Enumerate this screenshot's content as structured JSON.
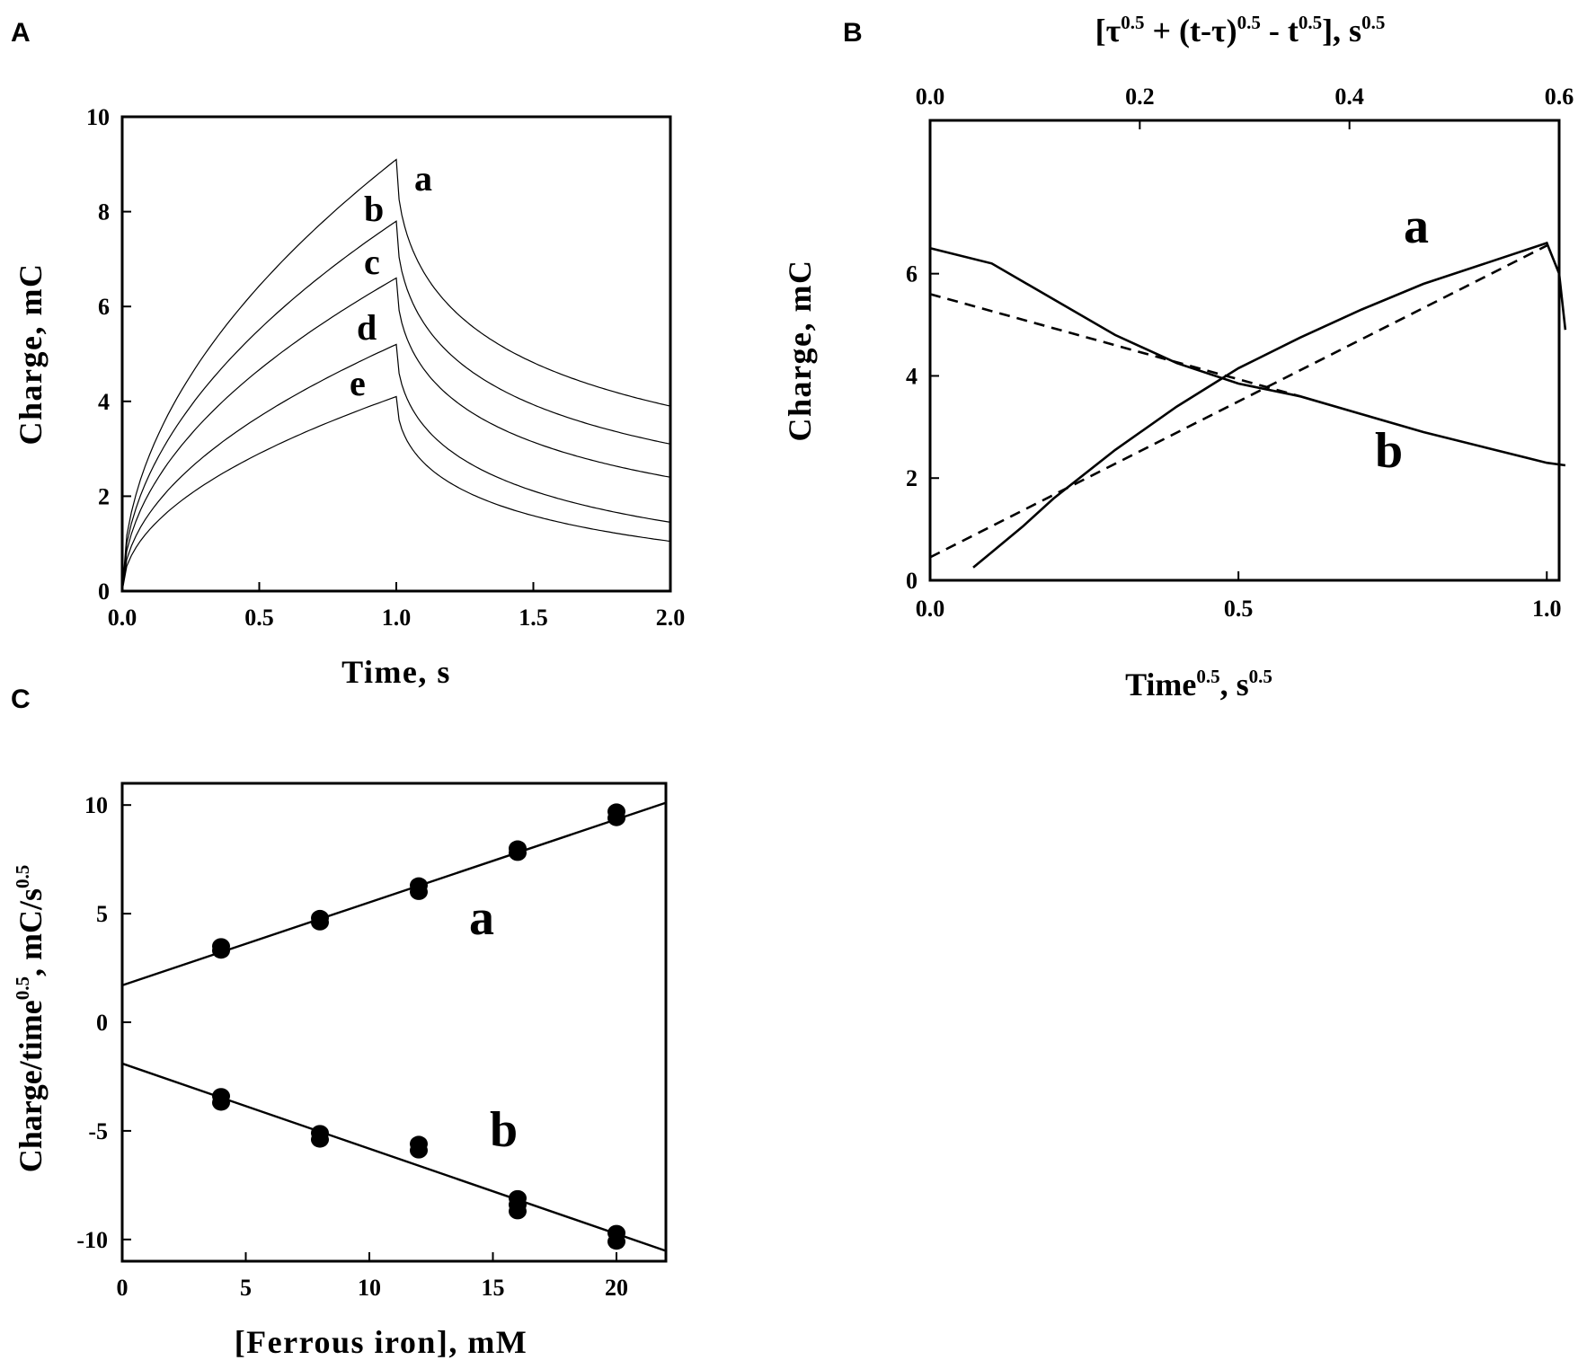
{
  "panels": {
    "A": "A",
    "B": "B",
    "C": "C"
  },
  "chart_data": [
    {
      "panel": "A",
      "type": "line",
      "xlabel": "Time, s",
      "ylabel": "Charge, mC",
      "xlim": [
        0,
        2
      ],
      "ylim": [
        0,
        10
      ],
      "xticks": [
        "0.0",
        "0.5",
        "1.0",
        "1.5",
        "2.0"
      ],
      "yticks": [
        "0",
        "2",
        "4",
        "6",
        "8",
        "10"
      ],
      "series": [
        {
          "name": "a",
          "peak": 9.1,
          "end": 3.9
        },
        {
          "name": "b",
          "peak": 7.8,
          "end": 3.1
        },
        {
          "name": "c",
          "peak": 6.6,
          "end": 2.4
        },
        {
          "name": "d",
          "peak": 5.2,
          "end": 1.45
        },
        {
          "name": "e",
          "peak": 4.1,
          "end": 1.05
        }
      ]
    },
    {
      "panel": "B",
      "type": "line",
      "xlabel": "Time",
      "xlabel_sup": "0.5",
      "xlabel_mid": ", s",
      "xlabel_sup2": "0.5",
      "top_xlabel_parts": [
        "[τ",
        "0.5",
        " + (t-τ)",
        "0.5",
        " - t",
        "0.5",
        "], s",
        "0.5"
      ],
      "ylabel": "Charge, mC",
      "xlim": [
        0,
        1.02
      ],
      "top_xlim": [
        0,
        0.6
      ],
      "ylim": [
        0,
        9
      ],
      "xticks": [
        "0.0",
        "0.5",
        "1.0"
      ],
      "top_xticks": [
        "0.0",
        "0.2",
        "0.4",
        "0.6"
      ],
      "yticks": [
        "0",
        "2",
        "4",
        "6"
      ],
      "series": [
        {
          "name": "a",
          "style": "solid",
          "x": [
            0.07,
            0.1,
            0.15,
            0.2,
            0.3,
            0.4,
            0.5,
            0.6,
            0.7,
            0.8,
            0.9,
            1.0,
            1.02,
            1.03
          ],
          "y": [
            0.25,
            0.55,
            1.05,
            1.6,
            2.55,
            3.4,
            4.15,
            4.75,
            5.3,
            5.8,
            6.2,
            6.6,
            6.0,
            4.9
          ]
        },
        {
          "name": "a-fit",
          "style": "dashed",
          "x": [
            0.0,
            1.0
          ],
          "y": [
            0.45,
            6.55
          ]
        },
        {
          "name": "b",
          "style": "solid",
          "x": [
            0.0,
            0.1,
            0.2,
            0.3,
            0.4,
            0.5,
            0.6,
            0.7,
            0.8,
            0.9,
            1.0,
            1.03
          ],
          "y": [
            6.5,
            6.2,
            5.5,
            4.8,
            4.25,
            3.85,
            3.6,
            3.25,
            2.9,
            2.6,
            2.3,
            2.25
          ]
        },
        {
          "name": "b-fit",
          "style": "dashed",
          "x": [
            0.0,
            0.6
          ],
          "y": [
            5.6,
            3.6
          ]
        }
      ],
      "labels": [
        "a",
        "b"
      ]
    },
    {
      "panel": "C",
      "type": "scatter",
      "xlabel": "[Ferrous iron], mM",
      "ylabel": "Charge/time",
      "ylabel_sup": "0.5",
      "ylabel_mid": ", mC/s",
      "ylabel_sup2": "0.5",
      "xlim": [
        0,
        22
      ],
      "ylim": [
        -11,
        11
      ],
      "xticks": [
        "0",
        "5",
        "10",
        "15",
        "20"
      ],
      "yticks": [
        "10",
        "5",
        "0",
        "-5",
        "-10"
      ],
      "series": [
        {
          "name": "a",
          "x": [
            4,
            4,
            8,
            8,
            12,
            12,
            16,
            16,
            20,
            20
          ],
          "y": [
            3.3,
            3.5,
            4.6,
            4.8,
            6.0,
            6.3,
            7.8,
            8.0,
            9.4,
            9.7
          ],
          "fit": {
            "intercept": 1.7,
            "slope": 0.382
          }
        },
        {
          "name": "b",
          "x": [
            4,
            4,
            8,
            8,
            12,
            12,
            16,
            16,
            16,
            20,
            20
          ],
          "y": [
            -3.4,
            -3.7,
            -5.1,
            -5.4,
            -5.6,
            -5.9,
            -8.1,
            -8.4,
            -8.7,
            -9.7,
            -10.1
          ],
          "fit": {
            "intercept": -1.9,
            "slope": -0.392
          }
        }
      ]
    }
  ]
}
